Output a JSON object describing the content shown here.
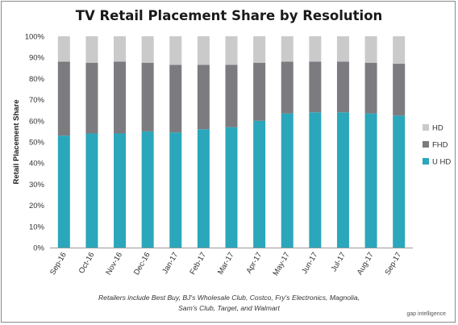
{
  "chart_data": {
    "type": "bar",
    "stacked": true,
    "title": "TV Retail Placement Share by Resolution",
    "ylabel": "Retail Placement Share",
    "xlabel": "",
    "ylim": [
      0,
      100
    ],
    "yticks": [
      "0%",
      "10%",
      "20%",
      "30%",
      "40%",
      "50%",
      "60%",
      "70%",
      "80%",
      "90%",
      "100%"
    ],
    "categories": [
      "Sep-16",
      "Oct-16",
      "Nov-16",
      "Dec-16",
      "Jan-17",
      "Feb-17",
      "Mar-17",
      "Apr-17",
      "May-17",
      "Jun-17",
      "Jul-17",
      "Aug-17",
      "Sep-17"
    ],
    "series": [
      {
        "name": "U HD",
        "color": "#2aa7bb",
        "values": [
          53,
          54,
          54,
          55,
          54.5,
          56,
          57,
          60,
          63.5,
          64,
          64,
          63.5,
          62.5
        ]
      },
      {
        "name": "FHD",
        "color": "#7b7b80",
        "values": [
          35,
          33.5,
          34,
          32.5,
          32,
          30.5,
          29.5,
          27.5,
          24.5,
          24,
          24,
          24,
          24.5
        ]
      },
      {
        "name": "HD",
        "color": "#cacaca",
        "values": [
          12,
          12.5,
          12,
          12.5,
          13.5,
          13.5,
          13.5,
          12.5,
          12,
          12,
          12,
          12.5,
          13
        ]
      }
    ],
    "legend": {
      "position": "right",
      "order": [
        "HD",
        "FHD",
        "U HD"
      ]
    },
    "grid": false
  },
  "footnote": {
    "line1": "Retailers include Best Buy, BJ's Wholesale Club, Costco, Fry's Electronics, Magnolia,",
    "line2": "Sam's Club, Target, and Walmart"
  },
  "brand": {
    "text": "gap intelligence"
  }
}
